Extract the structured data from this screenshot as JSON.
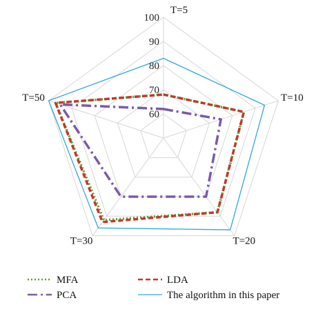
{
  "chart_data": {
    "type": "radar",
    "axes": [
      "T=5",
      "T=10",
      "T=20",
      "T=30",
      "T=50"
    ],
    "rlim": [
      50,
      100
    ],
    "ticks": [
      60,
      70,
      80,
      90,
      100
    ],
    "grid": true,
    "legend_position": "bottom",
    "series": [
      {
        "name": "MFA",
        "values": [
          68,
          85,
          88,
          92,
          97
        ],
        "color": "#5aa02c",
        "dash": "dotted"
      },
      {
        "name": "LDA",
        "values": [
          68,
          85,
          88,
          93,
          97
        ],
        "color": "#c0392b",
        "dash": "dashed"
      },
      {
        "name": "PCA",
        "values": [
          62,
          75,
          80,
          80,
          95
        ],
        "color": "#7b5aa6",
        "dash": "dashdot"
      },
      {
        "name": "The algorithm in this paper",
        "values": [
          83,
          94,
          97,
          96,
          100
        ],
        "color": "#2fa8d8",
        "dash": "solid"
      }
    ]
  }
}
